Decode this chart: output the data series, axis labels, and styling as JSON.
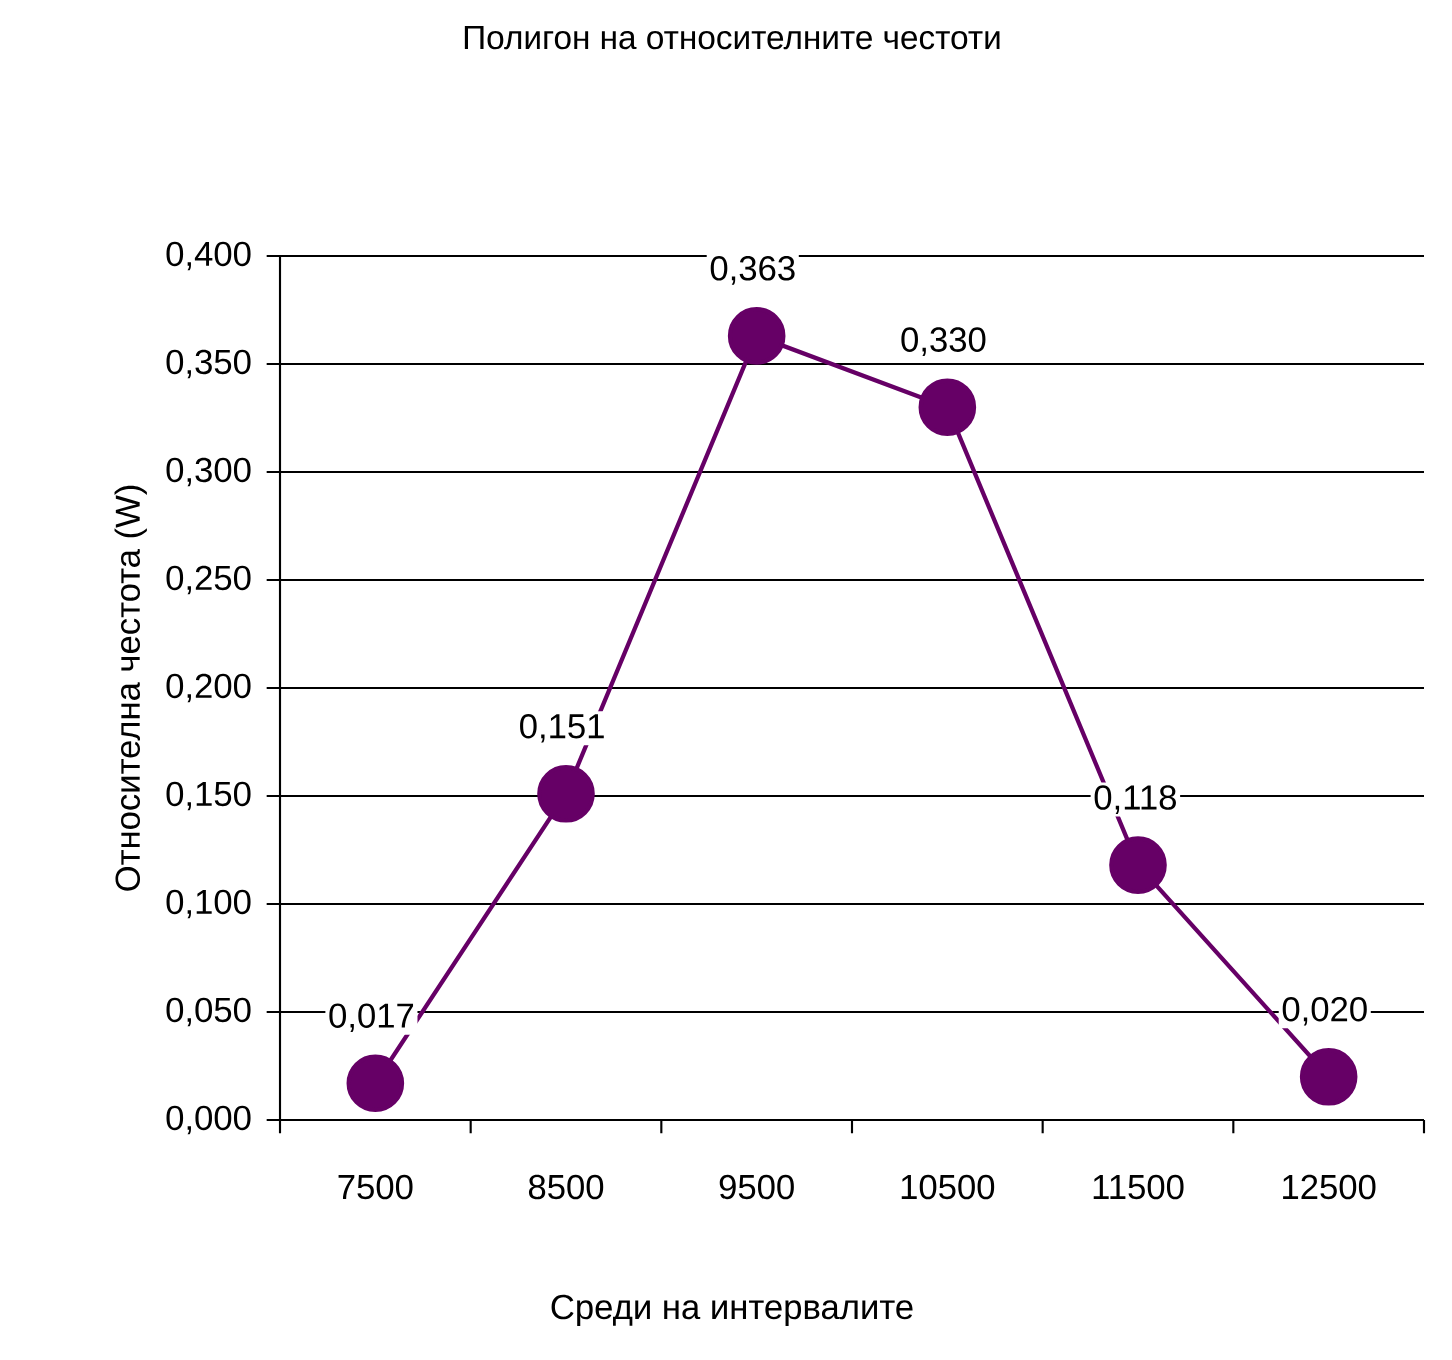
{
  "chart_data": {
    "type": "line",
    "title": "Полигон на относителните честоти",
    "xlabel": "Среди на интервалите",
    "ylabel": "Относителна  честота (W)",
    "categories": [
      "7500",
      "8500",
      "9500",
      "10500",
      "11500",
      "12500"
    ],
    "series": [
      {
        "color": "#660066",
        "values": [
          0.017,
          0.151,
          0.363,
          0.33,
          0.118,
          0.02
        ]
      }
    ],
    "value_labels": [
      "0,017",
      "0,151",
      "0,363",
      "0,330",
      "0,118",
      "0,020"
    ],
    "ylim": [
      0,
      0.4
    ],
    "yticks": [
      {
        "value": 0,
        "label": "0,000"
      },
      {
        "value": 0.05,
        "label": "0,050"
      },
      {
        "value": 0.1,
        "label": "0,100"
      },
      {
        "value": 0.15,
        "label": "0,150"
      },
      {
        "value": 0.2,
        "label": "0,200"
      },
      {
        "value": 0.25,
        "label": "0,250"
      },
      {
        "value": 0.3,
        "label": "0,300"
      },
      {
        "value": 0.35,
        "label": "0,350"
      },
      {
        "value": 0.4,
        "label": "0,400"
      }
    ],
    "grid": "y",
    "marker": "circle",
    "line_style": "solid"
  }
}
